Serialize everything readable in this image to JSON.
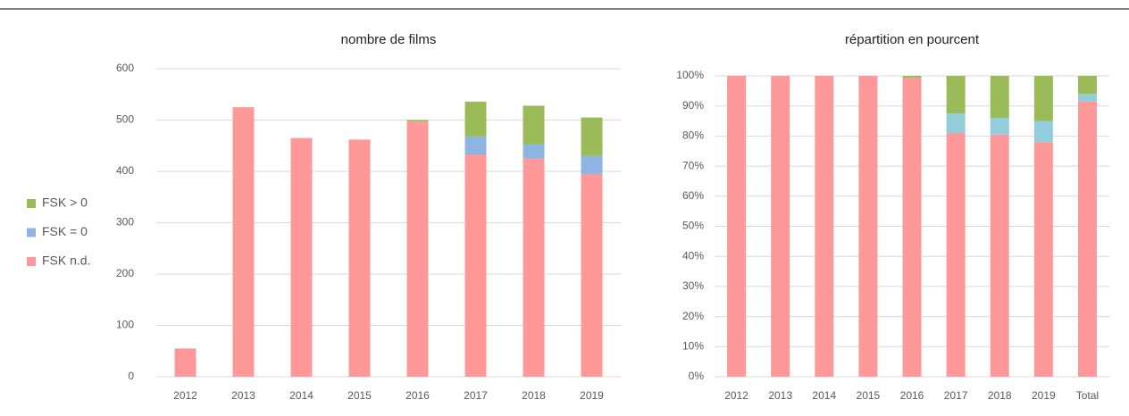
{
  "chart_data": [
    {
      "type": "bar",
      "stacked": true,
      "title": "nombre de films",
      "categories": [
        "2012",
        "2013",
        "2014",
        "2015",
        "2016",
        "2017",
        "2018",
        "2019"
      ],
      "series": [
        {
          "name": "FSK n.d.",
          "color": "#ff9999",
          "values": [
            55,
            525,
            465,
            462,
            497,
            433,
            425,
            395
          ]
        },
        {
          "name": "FSK = 0",
          "color": "#8db4e2",
          "values": [
            0,
            0,
            0,
            0,
            0,
            35,
            28,
            35
          ]
        },
        {
          "name": "FSK > 0",
          "color": "#9bbb59",
          "values": [
            0,
            0,
            0,
            0,
            3,
            68,
            75,
            75
          ]
        }
      ],
      "ylim": [
        0,
        600
      ],
      "yticks": [
        0,
        100,
        200,
        300,
        400,
        500,
        600
      ],
      "grid": true,
      "legend": "left"
    },
    {
      "type": "bar",
      "stacked": true,
      "title": "répartition en pourcent",
      "categories": [
        "2012",
        "2013",
        "2014",
        "2015",
        "2016",
        "2017",
        "2018",
        "2019",
        "Total"
      ],
      "series": [
        {
          "name": "FSK n.d.",
          "color": "#ff9999",
          "values": [
            100,
            100,
            100,
            100,
            99.4,
            81,
            80.5,
            78,
            91.5
          ]
        },
        {
          "name": "FSK = 0",
          "color": "#92cddc",
          "values": [
            0,
            0,
            0,
            0,
            0,
            6.5,
            5.5,
            7,
            2.5
          ]
        },
        {
          "name": "FSK > 0",
          "color": "#9bbb59",
          "values": [
            0,
            0,
            0,
            0,
            0.6,
            12.5,
            14,
            15,
            6
          ]
        }
      ],
      "ylim": [
        0,
        100
      ],
      "yticks": [
        {
          "value": 0,
          "label": "0%"
        },
        {
          "value": 10,
          "label": "10%"
        },
        {
          "value": 20,
          "label": "20%"
        },
        {
          "value": 30,
          "label": "30%"
        },
        {
          "value": 40,
          "label": "40%"
        },
        {
          "value": 50,
          "label": "50%"
        },
        {
          "value": 60,
          "label": "60%"
        },
        {
          "value": 70,
          "label": "70%"
        },
        {
          "value": 80,
          "label": "80%"
        },
        {
          "value": 90,
          "label": "90%"
        },
        {
          "value": 100,
          "label": "100%"
        }
      ],
      "grid": true
    }
  ]
}
